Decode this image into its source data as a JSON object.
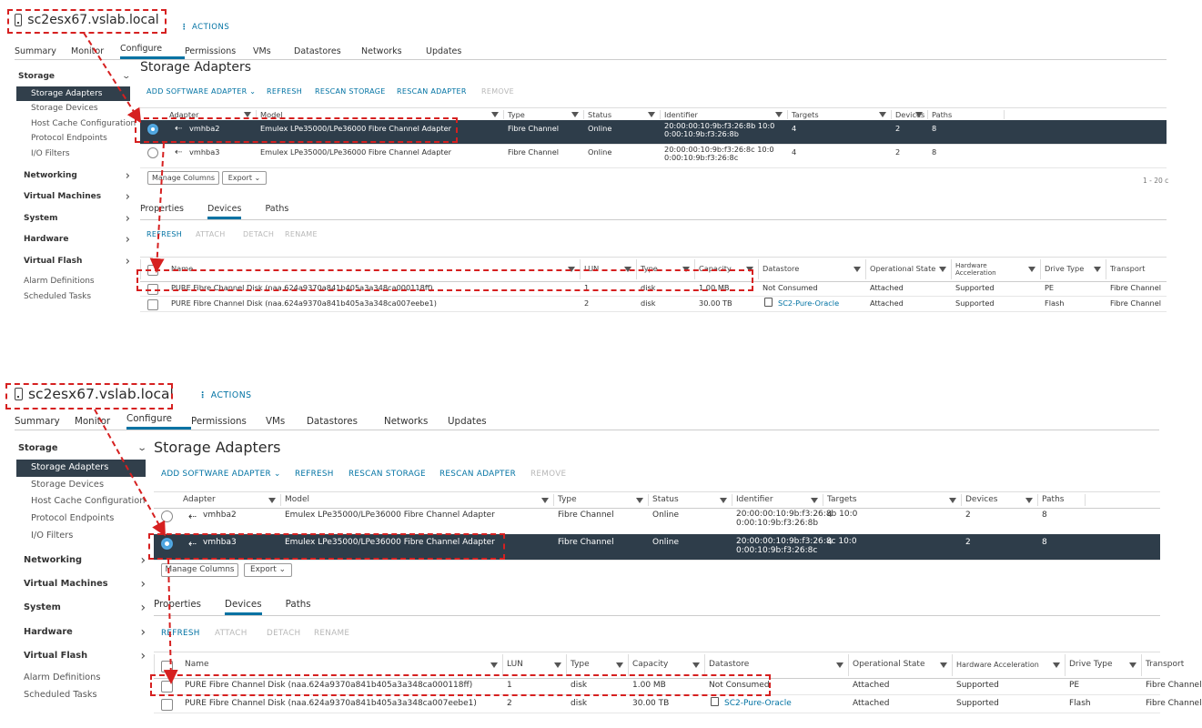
{
  "panels": [
    {
      "host": {
        "name": "sc2esx67.vslab.local",
        "actions": "ACTIONS"
      },
      "tabs": [
        "Summary",
        "Monitor",
        "Configure",
        "Permissions",
        "VMs",
        "Datastores",
        "Networks",
        "Updates"
      ],
      "active_tab": "Configure",
      "nav": {
        "storage": "Storage",
        "storage_items": [
          "Storage Adapters",
          "Storage Devices",
          "Host Cache Configuration",
          "Protocol Endpoints",
          "I/O Filters"
        ],
        "groups": [
          "Networking",
          "Virtual Machines",
          "System",
          "Hardware",
          "Virtual Flash"
        ],
        "footer": [
          "Alarm Definitions",
          "Scheduled Tasks"
        ]
      },
      "page_title": "Storage Adapters",
      "toolbar": [
        "ADD SOFTWARE ADAPTER ⌄",
        "REFRESH",
        "RESCAN STORAGE",
        "RESCAN ADAPTER",
        "REMOVE"
      ],
      "adapter_headers": [
        "Adapter",
        "Model",
        "Type",
        "Status",
        "Identifier",
        "Targets",
        "Devices",
        "Paths"
      ],
      "adapters": [
        {
          "adapter": "vmhba2",
          "model": "Emulex LPe35000/LPe36000 Fibre Channel Adapter",
          "type": "Fibre Channel",
          "status": "Online",
          "id1": "20:00:00:10:9b:f3:26:8b 10:0",
          "id2": "0:00:10:9b:f3:26:8b",
          "targets": "4",
          "devices": "2",
          "paths": "8",
          "selected": true
        },
        {
          "adapter": "vmhba3",
          "model": "Emulex LPe35000/LPe36000 Fibre Channel Adapter",
          "type": "Fibre Channel",
          "status": "Online",
          "id1": "20:00:00:10:9b:f3:26:8c 10:0",
          "id2": "0:00:10:9b:f3:26:8c",
          "targets": "4",
          "devices": "2",
          "paths": "8",
          "selected": false
        }
      ],
      "manage_columns": "Manage Columns",
      "export": "Export ⌄",
      "count": "1 - 20 c",
      "subtabs": [
        "Properties",
        "Devices",
        "Paths"
      ],
      "active_subtab": "Devices",
      "dev_toolbar": [
        "REFRESH",
        "ATTACH",
        "DETACH",
        "RENAME"
      ],
      "device_headers": [
        "Name",
        "LUN",
        "Type",
        "Capacity",
        "Datastore",
        "Operational State",
        "Hardware Acceleration",
        "Drive Type",
        "Transport"
      ],
      "devices": [
        {
          "name": "PURE Fibre Channel Disk (naa.624a9370a841b405a3a348ca000118ff)",
          "lun": "1",
          "type": "disk",
          "capacity": "1.00 MB",
          "datastore": "Not Consumed",
          "ds_link": false,
          "state": "Attached",
          "accel": "Supported",
          "drive": "PE",
          "transport": "Fibre Channel"
        },
        {
          "name": "PURE Fibre Channel Disk (naa.624a9370a841b405a3a348ca007eebe1)",
          "lun": "2",
          "type": "disk",
          "capacity": "30.00 TB",
          "datastore": "SC2-Pure-Oracle",
          "ds_link": true,
          "state": "Attached",
          "accel": "Supported",
          "drive": "Flash",
          "transport": "Fibre Channel"
        }
      ]
    },
    {
      "host": {
        "name": "sc2esx67.vslab.local",
        "actions": "ACTIONS"
      },
      "tabs": [
        "Summary",
        "Monitor",
        "Configure",
        "Permissions",
        "VMs",
        "Datastores",
        "Networks",
        "Updates"
      ],
      "active_tab": "Configure",
      "nav": {
        "storage": "Storage",
        "storage_items": [
          "Storage Adapters",
          "Storage Devices",
          "Host Cache Configuration",
          "Protocol Endpoints",
          "I/O Filters"
        ],
        "groups": [
          "Networking",
          "Virtual Machines",
          "System",
          "Hardware",
          "Virtual Flash"
        ],
        "footer": [
          "Alarm Definitions",
          "Scheduled Tasks"
        ]
      },
      "page_title": "Storage Adapters",
      "toolbar": [
        "ADD SOFTWARE ADAPTER ⌄",
        "REFRESH",
        "RESCAN STORAGE",
        "RESCAN ADAPTER",
        "REMOVE"
      ],
      "adapter_headers": [
        "Adapter",
        "Model",
        "Type",
        "Status",
        "Identifier",
        "Targets",
        "Devices",
        "Paths"
      ],
      "adapters": [
        {
          "adapter": "vmhba2",
          "model": "Emulex LPe35000/LPe36000 Fibre Channel Adapter",
          "type": "Fibre Channel",
          "status": "Online",
          "id1": "20:00:00:10:9b:f3:26:8b 10:0",
          "id2": "0:00:10:9b:f3:26:8b",
          "targets": "4",
          "devices": "2",
          "paths": "8",
          "selected": false
        },
        {
          "adapter": "vmhba3",
          "model": "Emulex LPe35000/LPe36000 Fibre Channel Adapter",
          "type": "Fibre Channel",
          "status": "Online",
          "id1": "20:00:00:10:9b:f3:26:8c 10:0",
          "id2": "0:00:10:9b:f3:26:8c",
          "targets": "4",
          "devices": "2",
          "paths": "8",
          "selected": true
        }
      ],
      "manage_columns": "Manage Columns",
      "export": "Export ⌄",
      "count": "",
      "subtabs": [
        "Properties",
        "Devices",
        "Paths"
      ],
      "active_subtab": "Devices",
      "dev_toolbar": [
        "REFRESH",
        "ATTACH",
        "DETACH",
        "RENAME"
      ],
      "device_headers": [
        "Name",
        "LUN",
        "Type",
        "Capacity",
        "Datastore",
        "Operational State",
        "Hardware Acceleration",
        "Drive Type",
        "Transport"
      ],
      "devices": [
        {
          "name": "PURE Fibre Channel Disk (naa.624a9370a841b405a3a348ca000118ff)",
          "lun": "1",
          "type": "disk",
          "capacity": "1.00 MB",
          "datastore": "Not Consumed",
          "ds_link": false,
          "state": "Attached",
          "accel": "Supported",
          "drive": "PE",
          "transport": "Fibre Channel"
        },
        {
          "name": "PURE Fibre Channel Disk (naa.624a9370a841b405a3a348ca007eebe1)",
          "lun": "2",
          "type": "disk",
          "capacity": "30.00 TB",
          "datastore": "SC2-Pure-Oracle",
          "ds_link": true,
          "state": "Attached",
          "accel": "Supported",
          "drive": "Flash",
          "transport": "Fibre Channel"
        }
      ]
    }
  ]
}
